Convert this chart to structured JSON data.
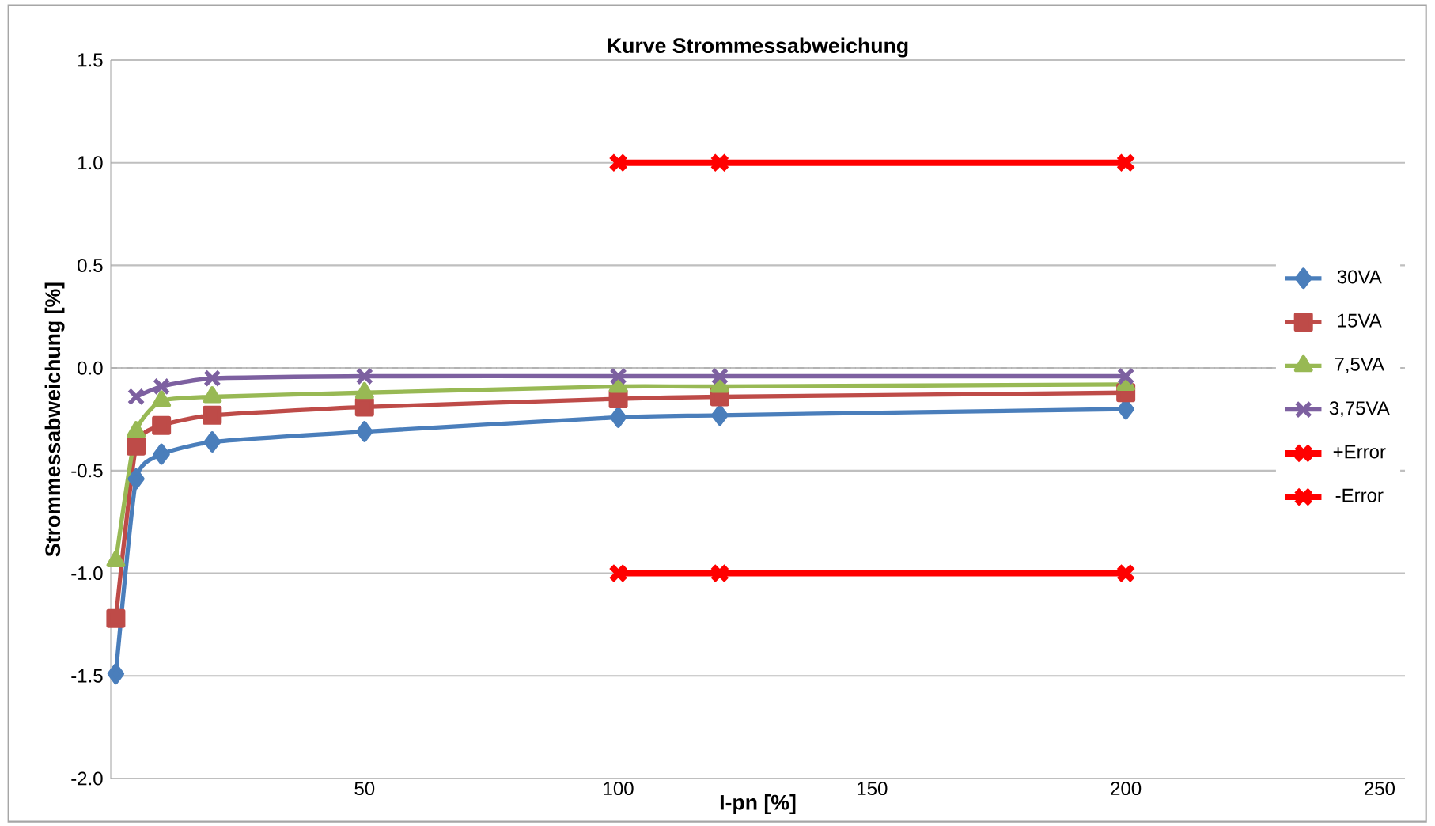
{
  "chart_data": {
    "type": "line",
    "title": "Kurve Strommessabweichung",
    "xlabel": "I-pn [%]",
    "ylabel": "Strommessabweichung [%]",
    "xlim": [
      0,
      255
    ],
    "xticks": [
      50,
      100,
      150,
      200,
      250
    ],
    "ylim": [
      -2.0,
      1.5
    ],
    "yticks": [
      {
        "value": -2.0,
        "label": "-2.0"
      },
      -1.5,
      {
        "value": -1.0,
        "label": "-1.0"
      },
      -0.5,
      {
        "value": 0.0,
        "label": "0.0"
      },
      0.5,
      {
        "value": 1.0,
        "label": "1.0"
      },
      1.5
    ],
    "grid": "y",
    "legend": "right",
    "ref_lines": [
      {
        "axis": "y",
        "value": 0,
        "color": "#b2b2b2",
        "line_style": "dashed"
      }
    ],
    "series": [
      {
        "name": "30VA",
        "color": "#4a7ebb",
        "marker": "diamond",
        "x": [
          1,
          5,
          10,
          20,
          50,
          100,
          120,
          200
        ],
        "values": [
          -1.49,
          -0.54,
          -0.42,
          -0.36,
          -0.31,
          -0.24,
          -0.23,
          -0.2
        ]
      },
      {
        "name": "15VA",
        "color": "#be4b48",
        "marker": "square",
        "x": [
          1,
          5,
          10,
          20,
          50,
          100,
          120,
          200
        ],
        "values": [
          -1.22,
          -0.38,
          -0.28,
          -0.23,
          -0.19,
          -0.15,
          -0.14,
          -0.12
        ]
      },
      {
        "name": "7,5VA",
        "color": "#98b954",
        "marker": "triangle",
        "x": [
          1,
          5,
          10,
          20,
          50,
          100,
          120,
          200
        ],
        "values": [
          -0.94,
          -0.31,
          -0.16,
          -0.14,
          -0.12,
          -0.09,
          -0.09,
          -0.08
        ]
      },
      {
        "name": "3,75VA",
        "color": "#7d60a0",
        "marker": "cross",
        "x": [
          5,
          10,
          20,
          50,
          100,
          120,
          200
        ],
        "values": [
          -0.14,
          -0.09,
          -0.05,
          -0.04,
          -0.04,
          -0.04,
          -0.04
        ]
      },
      {
        "name": "+Error",
        "color": "#ff0000",
        "marker": "cross",
        "x": [
          100,
          120,
          200
        ],
        "values": [
          1.0,
          1.0,
          1.0
        ]
      },
      {
        "name": "-Error",
        "color": "#ff0000",
        "marker": "cross",
        "x": [
          100,
          120,
          200
        ],
        "values": [
          -1.0,
          -1.0,
          -1.0
        ]
      }
    ]
  }
}
